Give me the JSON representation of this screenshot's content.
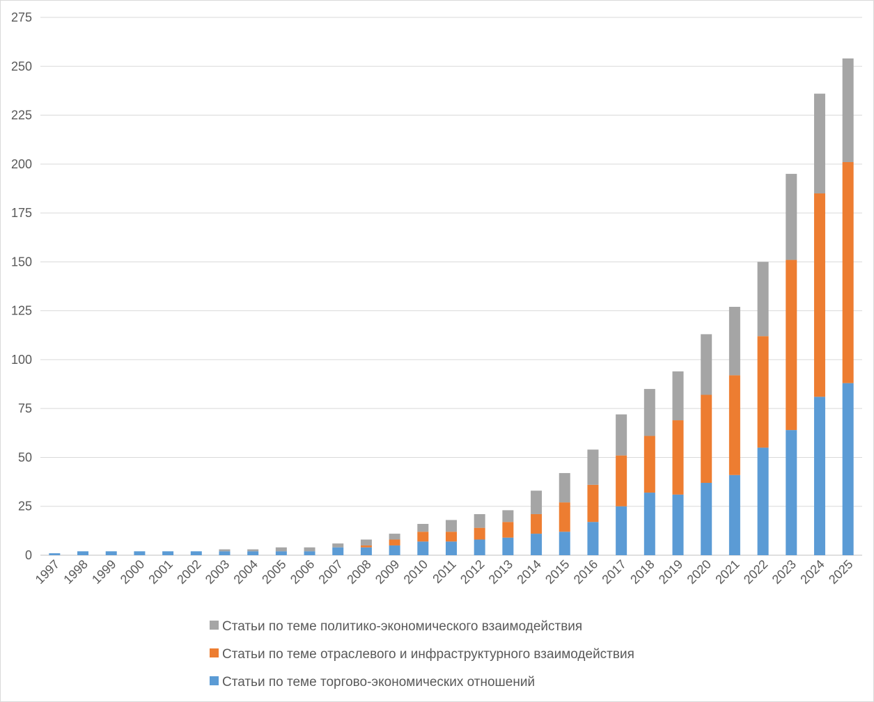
{
  "chart_data": {
    "type": "bar",
    "stacked": true,
    "title": "",
    "xlabel": "",
    "ylabel": "",
    "ylim": [
      0,
      275
    ],
    "yticks": [
      0,
      25,
      50,
      75,
      100,
      125,
      150,
      175,
      200,
      225,
      250,
      275
    ],
    "grid": true,
    "legend_position": "bottom",
    "categories": [
      "1997",
      "1998",
      "1999",
      "2000",
      "2001",
      "2002",
      "2003",
      "2004",
      "2005",
      "2006",
      "2007",
      "2008",
      "2009",
      "2010",
      "2011",
      "2012",
      "2013",
      "2014",
      "2015",
      "2016",
      "2017",
      "2018",
      "2019",
      "2020",
      "2021",
      "2022",
      "2023",
      "2024",
      "2025"
    ],
    "series": [
      {
        "name": "Статьи по теме торгово-экономических отношений",
        "color": "#5b9bd5",
        "values": [
          1,
          2,
          2,
          2,
          2,
          2,
          2,
          2,
          2,
          2,
          4,
          4,
          5,
          7,
          7,
          8,
          9,
          11,
          12,
          17,
          25,
          32,
          31,
          37,
          41,
          55,
          64,
          81,
          88
        ]
      },
      {
        "name": "Статьи по теме отраслевого и инфраструктурного взаимодействия",
        "color": "#ed7d31",
        "values": [
          0,
          0,
          0,
          0,
          0,
          0,
          0,
          0,
          0,
          0,
          0,
          1,
          3,
          5,
          5,
          6,
          8,
          10,
          15,
          19,
          26,
          29,
          38,
          45,
          51,
          57,
          87,
          104,
          113
        ]
      },
      {
        "name": "Статьи по теме политико-экономического взаимодействия",
        "color": "#a5a5a5",
        "values": [
          0,
          0,
          0,
          0,
          0,
          0,
          1,
          1,
          2,
          2,
          2,
          3,
          3,
          4,
          6,
          7,
          6,
          12,
          15,
          18,
          21,
          24,
          25,
          31,
          35,
          38,
          44,
          51,
          53
        ]
      }
    ],
    "legend_order": [
      2,
      1,
      0
    ]
  }
}
